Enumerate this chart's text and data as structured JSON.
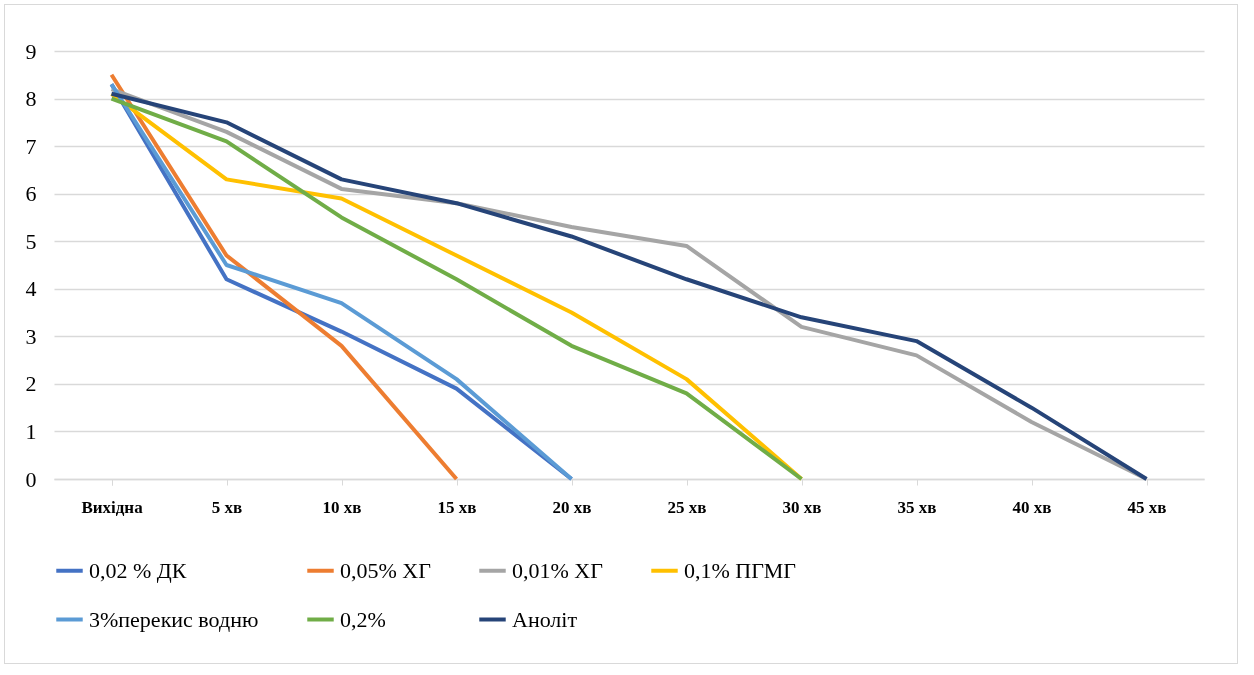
{
  "chart_data": {
    "type": "line",
    "categories": [
      "Вихідна",
      "5  хв",
      "10 хв",
      "15 хв",
      "20 хв",
      "25 хв",
      "30 хв",
      "35 хв",
      "40 хв",
      "45 хв"
    ],
    "series": [
      {
        "name": "0,02 % ДК",
        "color": "#4472c4",
        "values": [
          8.3,
          4.2,
          3.1,
          1.9,
          0,
          null,
          null,
          null,
          null,
          null
        ]
      },
      {
        "name": "0,05% ХГ",
        "color": "#ed7d31",
        "values": [
          8.5,
          4.7,
          2.8,
          0,
          null,
          null,
          null,
          null,
          null,
          null
        ]
      },
      {
        "name": "0,01% ХГ",
        "color": "#a5a5a5",
        "values": [
          8.2,
          7.3,
          6.1,
          5.8,
          5.3,
          4.9,
          3.2,
          2.6,
          1.2,
          0
        ]
      },
      {
        "name": "0,1% ПГМГ",
        "color": "#ffc000",
        "values": [
          8.1,
          6.3,
          5.9,
          4.7,
          3.5,
          2.1,
          0,
          null,
          null,
          null
        ]
      },
      {
        "name": "3%перекис водню",
        "color": "#5b9bd5",
        "values": [
          8.3,
          4.5,
          3.7,
          2.1,
          0,
          null,
          null,
          null,
          null,
          null
        ]
      },
      {
        "name": "0,2%",
        "color": "#70ad47",
        "values": [
          8.0,
          7.1,
          5.5,
          4.2,
          2.8,
          1.8,
          0,
          null,
          null,
          null
        ]
      },
      {
        "name": "Аноліт",
        "color": "#264478",
        "values": [
          8.1,
          7.5,
          6.3,
          5.8,
          5.1,
          4.2,
          3.4,
          2.9,
          1.5,
          0
        ]
      }
    ],
    "ylim": [
      0,
      9
    ],
    "yticks": [
      0,
      1,
      2,
      3,
      4,
      5,
      6,
      7,
      8,
      9
    ],
    "grid": "y",
    "legend": "bottom"
  }
}
